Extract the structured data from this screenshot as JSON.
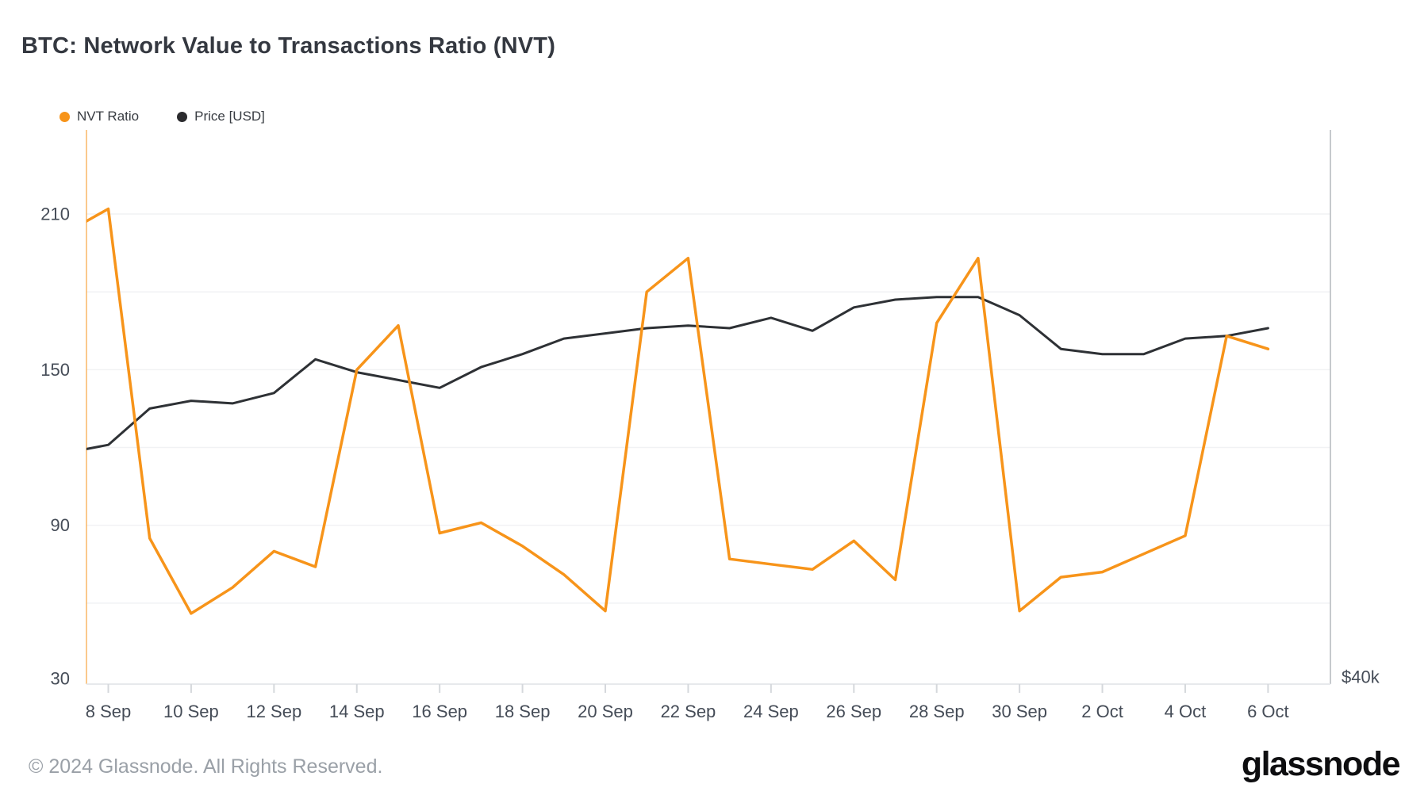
{
  "title": "BTC: Network Value to Transactions Ratio (NVT)",
  "legend": [
    {
      "label": "NVT Ratio",
      "color": "#F7941A"
    },
    {
      "label": "Price [USD]",
      "color": "#2B2B2E"
    }
  ],
  "footer": {
    "copyright": "© 2024 Glassnode. All Rights Reserved.",
    "brand": "glassnode"
  },
  "colors": {
    "accent_orange": "#F7941A",
    "price_line": "#2E3135",
    "grid_line": "#f1f2f4",
    "axis_text": "#454c57",
    "left_axis_line": "rgba(247,148,26,0.5)",
    "right_border": "#c6c9cd",
    "bottom_axis": "#e7e9ec",
    "tick_mark": "#d5d8dc",
    "footer_text": "#9aa0a7"
  },
  "chart_data": {
    "type": "line",
    "title": "BTC: Network Value to Transactions Ratio (NVT)",
    "x_categories": [
      "7 Sep",
      "8 Sep",
      "9 Sep",
      "10 Sep",
      "11 Sep",
      "12 Sep",
      "13 Sep",
      "14 Sep",
      "15 Sep",
      "16 Sep",
      "17 Sep",
      "18 Sep",
      "19 Sep",
      "20 Sep",
      "21 Sep",
      "22 Sep",
      "23 Sep",
      "24 Sep",
      "25 Sep",
      "26 Sep",
      "27 Sep",
      "28 Sep",
      "29 Sep",
      "30 Sep",
      "1 Oct",
      "2 Oct",
      "3 Oct",
      "4 Oct",
      "5 Oct",
      "6 Oct"
    ],
    "x_axis_tick_labels": [
      "8 Sep",
      "10 Sep",
      "12 Sep",
      "14 Sep",
      "16 Sep",
      "18 Sep",
      "20 Sep",
      "22 Sep",
      "24 Sep",
      "26 Sep",
      "28 Sep",
      "30 Sep",
      "2 Oct",
      "4 Oct",
      "6 Oct"
    ],
    "left_axis": {
      "tick_labels": [
        210,
        150,
        90,
        30
      ],
      "gridlines": [
        210,
        180,
        150,
        120,
        90,
        60
      ],
      "range": [
        29,
        242
      ]
    },
    "right_axis": {
      "tick_labels": [
        "$40k"
      ]
    },
    "grid": "horizontal-only",
    "legend_position": "top-left",
    "series": [
      {
        "name": "NVT Ratio",
        "color": "#F7941A",
        "line_width": 3.5,
        "values": [
          203,
          212,
          85,
          56,
          66,
          80,
          74,
          150,
          167,
          87,
          91,
          82,
          71,
          57,
          180,
          193,
          77,
          75,
          73,
          84,
          69,
          168,
          193,
          57,
          70,
          72,
          79,
          86,
          163,
          158
        ]
      },
      {
        "name": "Price [USD]",
        "color": "#2E3135",
        "line_width": 3,
        "axis": "right",
        "values_on_left_axis_scale": [
          118,
          121,
          135,
          138,
          137,
          141,
          154,
          149,
          146,
          143,
          151,
          156,
          162,
          164,
          166,
          167,
          166,
          170,
          165,
          174,
          177,
          178,
          178,
          171,
          158,
          156,
          156,
          162,
          163,
          166
        ]
      }
    ]
  }
}
